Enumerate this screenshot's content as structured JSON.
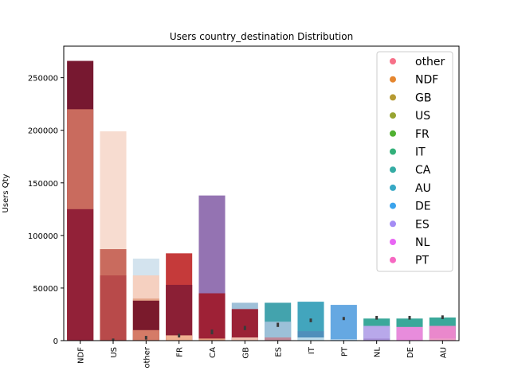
{
  "chart_data": {
    "type": "bar",
    "title": "Users country_destination Distribution",
    "xlabel": "",
    "ylabel": "Users Qty",
    "ylim": [
      0,
      280000
    ],
    "yticks": [
      0,
      50000,
      100000,
      150000,
      200000,
      250000
    ],
    "yticks_labels": [
      "0",
      "50000",
      "100000",
      "150000",
      "200000",
      "250000"
    ],
    "categories": [
      "NDF",
      "US",
      "other",
      "FR",
      "CA",
      "GB",
      "ES",
      "IT",
      "PT",
      "NL",
      "DE",
      "AU"
    ],
    "grid": false,
    "legend_position": "top-right",
    "legend": [
      {
        "label": "other",
        "color": "#f77189"
      },
      {
        "label": "NDF",
        "color": "#e5862f"
      },
      {
        "label": "GB",
        "color": "#b69a32"
      },
      {
        "label": "US",
        "color": "#97a431"
      },
      {
        "label": "FR",
        "color": "#50b131"
      },
      {
        "label": "IT",
        "color": "#33b07a"
      },
      {
        "label": "CA",
        "color": "#35aca4"
      },
      {
        "label": "AU",
        "color": "#38a9c5"
      },
      {
        "label": "DE",
        "color": "#3ba3ec"
      },
      {
        "label": "ES",
        "color": "#a48cf4"
      },
      {
        "label": "NL",
        "color": "#e866f4"
      },
      {
        "label": "PT",
        "color": "#f668c2"
      }
    ],
    "bars": [
      {
        "category": "NDF",
        "value": 266000,
        "color": "#771830"
      },
      {
        "category": "NDF",
        "value": 220000,
        "color": "#c96b5e"
      },
      {
        "category": "NDF",
        "value": 125000,
        "color": "#922138"
      },
      {
        "category": "US",
        "value": 199000,
        "color": "#f7dcd0"
      },
      {
        "category": "US",
        "value": 87000,
        "color": "#c96b5e"
      },
      {
        "category": "US",
        "value": 62000,
        "color": "#b84a4a"
      },
      {
        "category": "other",
        "value": 78000,
        "color": "#d3e3ee"
      },
      {
        "category": "other",
        "value": 62000,
        "color": "#f5d0c0"
      },
      {
        "category": "other",
        "value": 40000,
        "color": "#e5a58a"
      },
      {
        "category": "other",
        "value": 38000,
        "color": "#7a1a2c"
      },
      {
        "category": "other",
        "value": 10000,
        "color": "#d57b67"
      },
      {
        "category": "FR",
        "value": 83000,
        "color": "#c53a3a"
      },
      {
        "category": "FR",
        "value": 53000,
        "color": "#8b1f35"
      },
      {
        "category": "FR",
        "value": 5000,
        "color": "#f0b090"
      },
      {
        "category": "CA",
        "value": 138000,
        "color": "#9473b2"
      },
      {
        "category": "CA",
        "value": 45000,
        "color": "#9e2136"
      },
      {
        "category": "CA",
        "value": 2000,
        "color": "#e8a080"
      },
      {
        "category": "GB",
        "value": 36000,
        "color": "#9fc0d8"
      },
      {
        "category": "GB",
        "value": 30000,
        "color": "#9b2236"
      },
      {
        "category": "GB",
        "value": 3000,
        "color": "#f0c0b0"
      },
      {
        "category": "ES",
        "value": 36000,
        "color": "#43a3ad"
      },
      {
        "category": "ES",
        "value": 18000,
        "color": "#9cc0d8"
      },
      {
        "category": "ES",
        "value": 3000,
        "color": "#c08898"
      },
      {
        "category": "IT",
        "value": 37000,
        "color": "#42a5bd"
      },
      {
        "category": "IT",
        "value": 9000,
        "color": "#4f8fbb"
      },
      {
        "category": "IT",
        "value": 3000,
        "color": "#bcdcec"
      },
      {
        "category": "PT",
        "value": 34000,
        "color": "#65a8e2"
      },
      {
        "category": "PT",
        "value": 1500,
        "color": "#aad0f0"
      },
      {
        "category": "NL",
        "value": 21000,
        "color": "#3aa89a"
      },
      {
        "category": "NL",
        "value": 14000,
        "color": "#b8a8ea"
      },
      {
        "category": "NL",
        "value": 2000,
        "color": "#a890d8"
      },
      {
        "category": "DE",
        "value": 21000,
        "color": "#3aa89a"
      },
      {
        "category": "DE",
        "value": 13000,
        "color": "#e88cdc"
      },
      {
        "category": "AU",
        "value": 22000,
        "color": "#3aa89a"
      },
      {
        "category": "AU",
        "value": 14000,
        "color": "#ea88cc"
      },
      {
        "category": "AU",
        "value": 2000,
        "color": "#f0a0c8"
      }
    ],
    "error_bars": [
      {
        "category": "US",
        "low": 0,
        "high": 2000
      },
      {
        "category": "other",
        "low": 1000,
        "high": 4500
      },
      {
        "category": "FR",
        "low": 3000,
        "high": 6500
      },
      {
        "category": "CA",
        "low": 6000,
        "high": 10500
      },
      {
        "category": "GB",
        "low": 10000,
        "high": 14000
      },
      {
        "category": "ES",
        "low": 13000,
        "high": 17000
      },
      {
        "category": "IT",
        "low": 17500,
        "high": 21000
      },
      {
        "category": "PT",
        "low": 19500,
        "high": 22500
      },
      {
        "category": "NL",
        "low": 20000,
        "high": 23500
      },
      {
        "category": "DE",
        "low": 20000,
        "high": 23500
      },
      {
        "category": "AU",
        "low": 20500,
        "high": 24000
      }
    ]
  }
}
